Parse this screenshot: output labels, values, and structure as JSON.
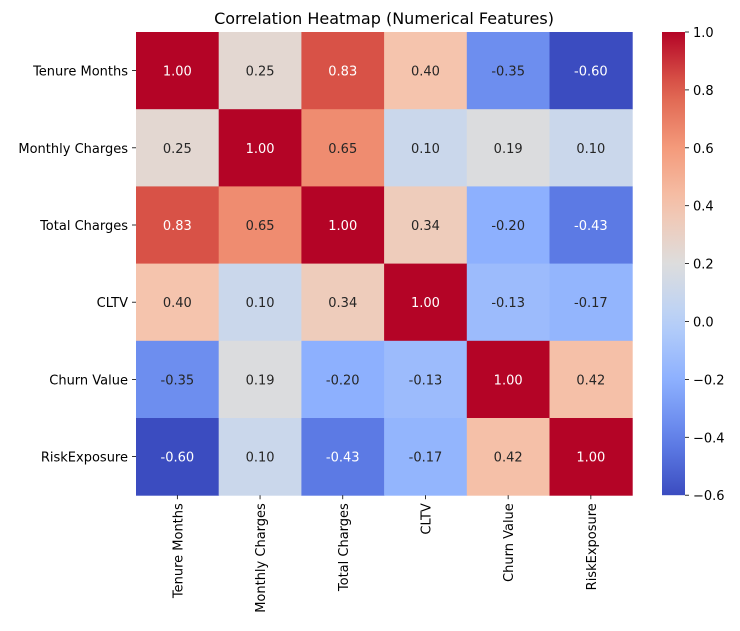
{
  "chart_data": {
    "type": "heatmap",
    "title": "Correlation Heatmap (Numerical Features)",
    "row_labels": [
      "Tenure Months",
      "Monthly Charges",
      "Total Charges",
      "CLTV",
      "Churn Value",
      "RiskExposure"
    ],
    "col_labels": [
      "Tenure Months",
      "Monthly Charges",
      "Total Charges",
      "CLTV",
      "Churn Value",
      "RiskExposure"
    ],
    "values": [
      [
        1.0,
        0.25,
        0.83,
        0.4,
        -0.35,
        -0.6
      ],
      [
        0.25,
        1.0,
        0.65,
        0.1,
        0.19,
        0.1
      ],
      [
        0.83,
        0.65,
        1.0,
        0.34,
        -0.2,
        -0.43
      ],
      [
        0.4,
        0.1,
        0.34,
        1.0,
        -0.13,
        -0.17
      ],
      [
        -0.35,
        0.19,
        -0.2,
        -0.13,
        1.0,
        0.42
      ],
      [
        -0.6,
        0.1,
        -0.43,
        -0.17,
        0.42,
        1.0
      ]
    ],
    "colormap": "coolwarm",
    "vmin": -0.6,
    "vmax": 1.0,
    "colorbar_ticks": [
      "1.0",
      "0.8",
      "0.6",
      "0.4",
      "0.2",
      "0.0",
      "−0.2",
      "−0.4",
      "−0.6"
    ],
    "colorbar_values": [
      1.0,
      0.8,
      0.6,
      0.4,
      0.2,
      0.0,
      -0.2,
      -0.4,
      -0.6
    ],
    "annotation_format": "0.00"
  }
}
